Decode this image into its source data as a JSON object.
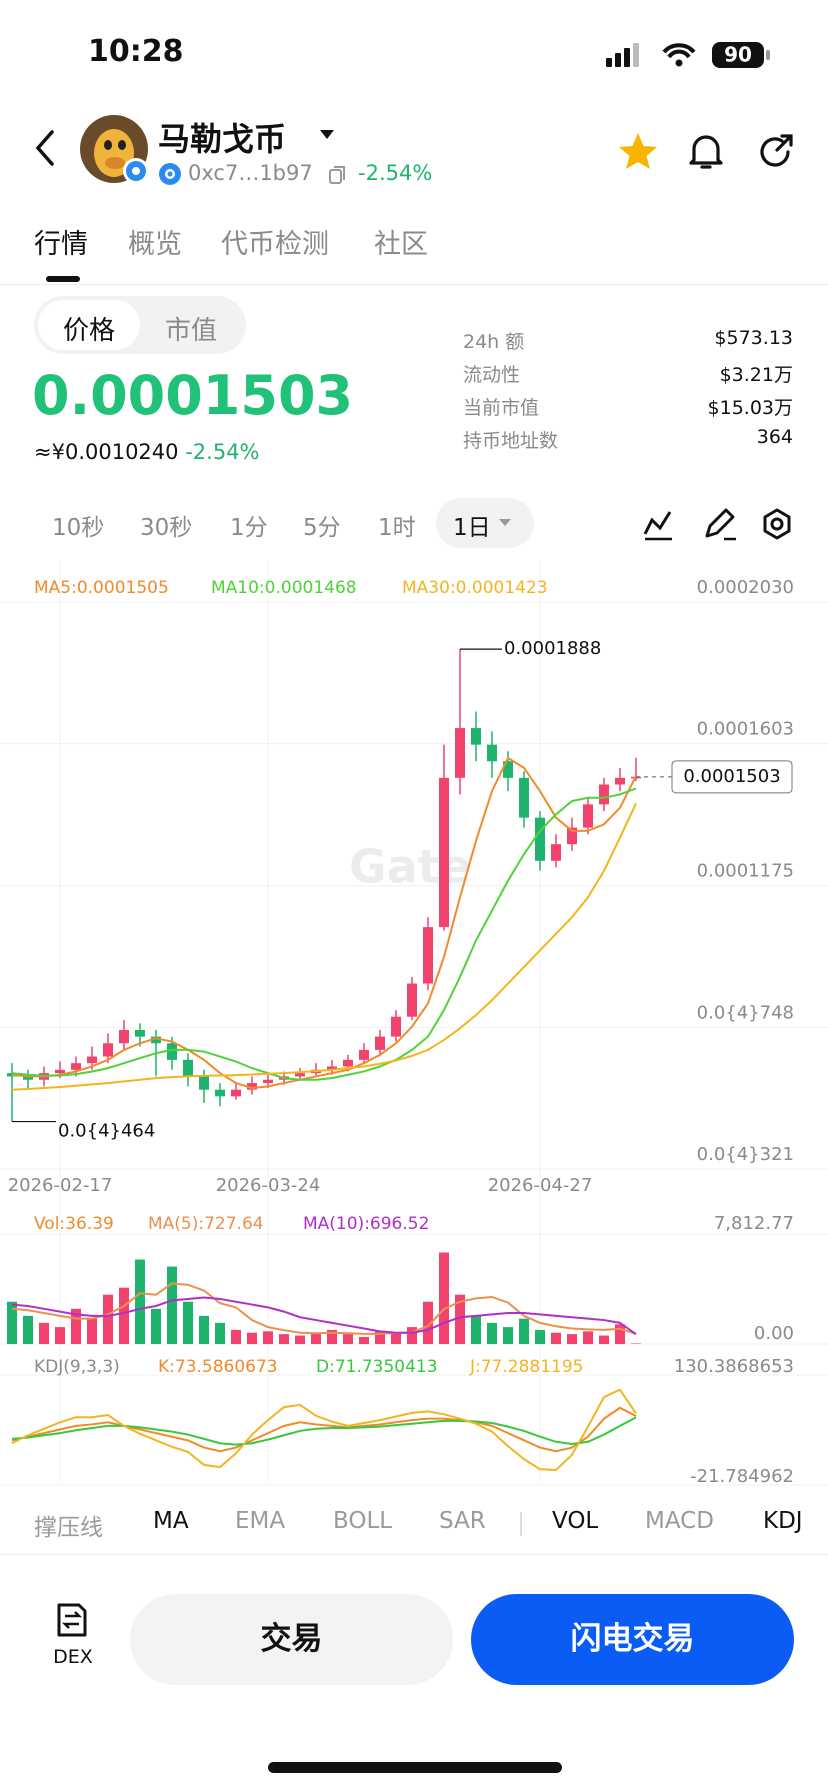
{
  "status": {
    "time": "10:28",
    "battery": "90"
  },
  "header": {
    "title": "马勒戈币",
    "address": "0xc7…1b97",
    "change": "-2.54%"
  },
  "tabs": [
    "行情",
    "概览",
    "代币检测",
    "社区"
  ],
  "toggle": [
    "价格",
    "市值"
  ],
  "price": {
    "value": "0.0001503",
    "cny": "≈¥0.0010240",
    "change": "-2.54%"
  },
  "stats": [
    [
      "24h 额",
      "$573.13"
    ],
    [
      "流动性",
      "$3.21万"
    ],
    [
      "当前市值",
      "$15.03万"
    ],
    [
      "持币地址数",
      "364"
    ]
  ],
  "intervals": [
    "10秒",
    "30秒",
    "1分",
    "5分",
    "1时",
    "1日"
  ],
  "indicators": [
    "撑压线",
    "MA",
    "EMA",
    "BOLL",
    "SAR",
    "VOL",
    "MACD",
    "KDJ"
  ],
  "bottom": {
    "dex": "DEX",
    "trade": "交易",
    "flash": "闪电交易"
  },
  "chart_data": [
    {
      "type": "candlestick",
      "watermark": "Gate",
      "min_label": "0.0{4}464",
      "up_color": "#f2436f",
      "down_color": "#1fb46e",
      "categories": [
        null,
        null,
        null,
        "2026-02-17",
        null,
        null,
        null,
        null,
        null,
        null,
        null,
        null,
        null,
        null,
        null,
        null,
        "2026-03-24",
        null,
        null,
        null,
        null,
        null,
        null,
        null,
        null,
        null,
        null,
        null,
        null,
        null,
        null,
        null,
        null,
        "2026-04-27",
        null,
        null,
        null,
        null,
        null,
        null
      ],
      "candles": {
        "open": [
          6.1e-05,
          6e-05,
          5.9e-05,
          6.1e-05,
          6.2e-05,
          6.4e-05,
          6.6e-05,
          7e-05,
          7.4e-05,
          7.2e-05,
          7e-05,
          6.5e-05,
          6e-05,
          5.6e-05,
          5.4e-05,
          5.6e-05,
          5.8e-05,
          5.9e-05,
          6e-05,
          6.1e-05,
          6.2e-05,
          6.3e-05,
          6.5e-05,
          6.8e-05,
          7.2e-05,
          7.8e-05,
          8.8e-05,
          0.000105,
          0.00015,
          0.000165,
          0.00016,
          0.000155,
          0.00015,
          0.000138,
          0.000125,
          0.00013,
          0.000135,
          0.000142,
          0.000148,
          0.00015
        ],
        "high": [
          6.4e-05,
          6.2e-05,
          6.3e-05,
          6.45e-05,
          6.6e-05,
          6.9e-05,
          7.3e-05,
          7.7e-05,
          7.6e-05,
          7.4e-05,
          7.2e-05,
          6.7e-05,
          6.2e-05,
          5.8e-05,
          5.8e-05,
          6e-05,
          6.1e-05,
          6.15e-05,
          6.25e-05,
          6.4e-05,
          6.5e-05,
          6.65e-05,
          7e-05,
          7.4e-05,
          8e-05,
          9e-05,
          0.000108,
          0.00016,
          0.0001888,
          0.00017,
          0.000164,
          0.000158,
          0.000152,
          0.00014,
          0.000133,
          0.000138,
          0.000144,
          0.00015,
          0.000153,
          0.000156
        ],
        "low": [
          4.64e-05,
          5.6e-05,
          5.7e-05,
          5.95e-05,
          6e-05,
          6.2e-05,
          6.4e-05,
          6.8e-05,
          6.9e-05,
          6e-05,
          6.2e-05,
          5.7e-05,
          5.2e-05,
          5.1e-05,
          5.3e-05,
          5.45e-05,
          5.65e-05,
          5.75e-05,
          5.9e-05,
          6e-05,
          6.05e-05,
          6.15e-05,
          6.4e-05,
          6.65e-05,
          7.05e-05,
          7.7e-05,
          8.6e-05,
          0.000104,
          0.000145,
          0.000155,
          0.00015,
          0.000146,
          0.000135,
          0.000122,
          0.000123,
          0.000128,
          0.000133,
          0.00014,
          0.000146,
          0.000149
        ],
        "close": [
          6e-05,
          5.9e-05,
          6.1e-05,
          6.2e-05,
          6.4e-05,
          6.6e-05,
          7e-05,
          7.4e-05,
          7.2e-05,
          7e-05,
          6.5e-05,
          6e-05,
          5.6e-05,
          5.4e-05,
          5.6e-05,
          5.8e-05,
          5.9e-05,
          6e-05,
          6.1e-05,
          6.2e-05,
          6.3e-05,
          6.5e-05,
          6.8e-05,
          7.2e-05,
          7.8e-05,
          8.8e-05,
          0.000105,
          0.00015,
          0.000165,
          0.00016,
          0.000155,
          0.00015,
          0.000138,
          0.000125,
          0.00013,
          0.000135,
          0.000142,
          0.000148,
          0.00015,
          0.0001503
        ]
      },
      "series": [
        {
          "name": "MA5:0.0001505",
          "color": "#f08a2c",
          "values": [
            6.05e-05,
            6e-05,
            6e-05,
            6.05e-05,
            6.15e-05,
            6.3e-05,
            6.5e-05,
            6.8e-05,
            7e-05,
            7.15e-05,
            7.05e-05,
            6.8e-05,
            6.5e-05,
            6.1e-05,
            5.8e-05,
            5.65e-05,
            5.7e-05,
            5.8e-05,
            5.9e-05,
            6e-05,
            6.1e-05,
            6.2e-05,
            6.4e-05,
            6.65e-05,
            7e-05,
            7.5e-05,
            8.2e-05,
            9.6e-05,
            0.000114,
            0.000131,
            0.000146,
            0.000156,
            0.000153,
            0.000146,
            0.000138,
            0.000134,
            0.000134,
            0.000136,
            0.000141,
            0.0001505
          ]
        },
        {
          "name": "MA10:0.0001468",
          "color": "#4fd23a",
          "values": [
            6.1e-05,
            6.05e-05,
            6.02e-05,
            6.03e-05,
            6.07e-05,
            6.15e-05,
            6.25e-05,
            6.4e-05,
            6.55e-05,
            6.7e-05,
            6.8e-05,
            6.8e-05,
            6.75e-05,
            6.6e-05,
            6.45e-05,
            6.25e-05,
            6.1e-05,
            5.95e-05,
            5.9e-05,
            5.9e-05,
            5.95e-05,
            6.05e-05,
            6.15e-05,
            6.3e-05,
            6.5e-05,
            6.8e-05,
            7.2e-05,
            8e-05,
            9e-05,
            0.000101,
            0.00011,
            0.000119,
            0.000127,
            0.000134,
            0.000139,
            0.000143,
            0.000144,
            0.000144,
            0.000145,
            0.0001468
          ]
        },
        {
          "name": "MA30:0.0001423",
          "color": "#f3b51e",
          "values": [
            5.6e-05,
            5.62e-05,
            5.65e-05,
            5.68e-05,
            5.72e-05,
            5.76e-05,
            5.8e-05,
            5.85e-05,
            5.9e-05,
            5.95e-05,
            5.98e-05,
            6e-05,
            6.02e-05,
            6.03e-05,
            6.04e-05,
            6.06e-05,
            6.08e-05,
            6.1e-05,
            6.13e-05,
            6.16e-05,
            6.2e-05,
            6.25e-05,
            6.3e-05,
            6.38e-05,
            6.48e-05,
            6.62e-05,
            6.8e-05,
            7.1e-05,
            7.45e-05,
            7.85e-05,
            8.3e-05,
            8.8e-05,
            9.3e-05,
            9.8e-05,
            0.000103,
            0.000108,
            0.000114,
            0.000122,
            0.000132,
            0.0001423
          ]
        }
      ],
      "ylim": [
        3.21e-05,
        0.000203
      ],
      "yticks": [
        {
          "value": 0.000203,
          "label": "0.0002030"
        },
        {
          "value": 0.0001603,
          "label": "0.0001603"
        },
        {
          "value": 0.0001175,
          "label": "0.0001175"
        },
        {
          "value": 7.48e-05,
          "label": "0.0{4}748"
        },
        {
          "value": 3.21e-05,
          "label": "0.0{4}321"
        }
      ],
      "grid": true
    },
    {
      "type": "bar",
      "name": "Vol:36.39",
      "color": "#f08a2c",
      "values": [
        3000,
        2000,
        1500,
        1200,
        2500,
        1800,
        3500,
        4000,
        6000,
        2500,
        5500,
        3000,
        2000,
        1500,
        1000,
        800,
        900,
        700,
        600,
        800,
        1000,
        700,
        500,
        900,
        800,
        1200,
        3000,
        6500,
        3500,
        2000,
        1500,
        1200,
        1800,
        1000,
        800,
        700,
        900,
        600,
        1400,
        36.39
      ],
      "series": [
        {
          "name": "MA(5):727.64",
          "color": "#ec8f4f",
          "values": [
            2500,
            2400,
            2200,
            2000,
            1800,
            1800,
            2100,
            2700,
            3600,
            3500,
            4300,
            4200,
            3800,
            2900,
            2600,
            1700,
            1200,
            980,
            800,
            760,
            800,
            760,
            720,
            720,
            780,
            820,
            1280,
            2480,
            3000,
            3240,
            3340,
            2940,
            2000,
            1500,
            1260,
            1100,
            1040,
            1000,
            1080,
            727.64
          ]
        },
        {
          "name": "MA(10):696.52",
          "color": "#b12fc9",
          "values": [
            2800,
            2700,
            2500,
            2300,
            2100,
            2000,
            2000,
            2200,
            2500,
            2700,
            3100,
            3200,
            3300,
            3200,
            3000,
            2800,
            2600,
            2300,
            1900,
            1700,
            1500,
            1300,
            1100,
            900,
            800,
            800,
            1000,
            1500,
            1900,
            2000,
            2100,
            2200,
            2200,
            2100,
            2000,
            1900,
            1800,
            1700,
            1500,
            696.52
          ]
        }
      ],
      "ylim": [
        0,
        7812.77
      ],
      "yticks": [
        {
          "value": 7812.77,
          "label": "7,812.77"
        },
        {
          "value": 0,
          "label": "0.00"
        }
      ]
    },
    {
      "type": "line",
      "title": "KDJ(9,3,3)",
      "series": [
        {
          "name": "K:73.5860673",
          "color": "#f08a2c",
          "values": [
            40,
            45,
            50,
            55,
            60,
            62,
            65,
            60,
            55,
            50,
            45,
            40,
            30,
            25,
            30,
            40,
            50,
            60,
            65,
            62,
            60,
            58,
            60,
            62,
            65,
            68,
            70,
            70,
            68,
            65,
            60,
            50,
            40,
            30,
            25,
            30,
            45,
            70,
            85,
            73.5860673
          ]
        },
        {
          "name": "D:71.7350413",
          "color": "#36c93a",
          "values": [
            42,
            44,
            47,
            50,
            54,
            57,
            60,
            60,
            58,
            55,
            52,
            48,
            42,
            36,
            34,
            36,
            41,
            47,
            53,
            56,
            57,
            57,
            58,
            59,
            61,
            63,
            65,
            67,
            67,
            66,
            64,
            59,
            53,
            45,
            38,
            35,
            38,
            48,
            60,
            71.7350413
          ]
        },
        {
          "name": "J:77.2881195",
          "color": "#f3b51e",
          "values": [
            36,
            47,
            56,
            65,
            72,
            72,
            75,
            60,
            49,
            40,
            31,
            24,
            6,
            3,
            22,
            48,
            68,
            86,
            89,
            74,
            66,
            60,
            64,
            68,
            73,
            78,
            80,
            76,
            70,
            63,
            52,
            32,
            14,
            0,
            -1,
            20,
            59,
            100,
            110,
            77.2881195
          ]
        }
      ],
      "ylim": [
        -21.784962,
        130.3868653
      ],
      "yticks": [
        130.3868653,
        -21.784962
      ]
    }
  ]
}
